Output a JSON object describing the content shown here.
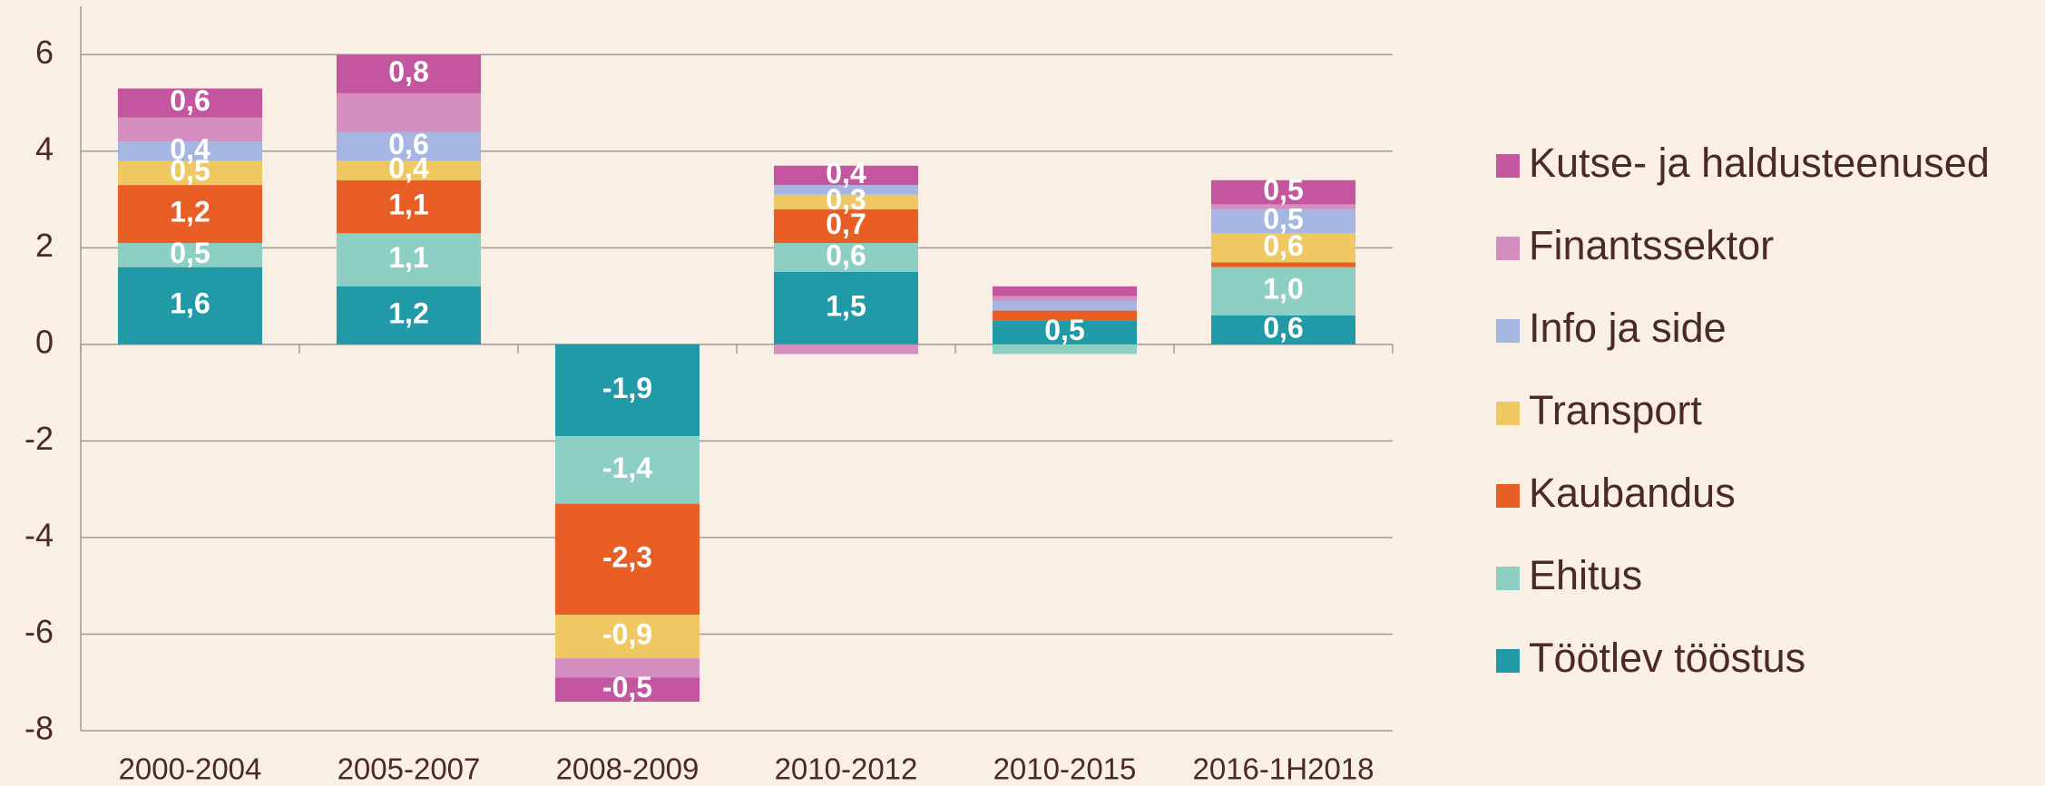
{
  "chart_data": {
    "type": "stacked_bar",
    "categories": [
      "2000-2004",
      "2005-2007",
      "2008-2009",
      "2010-2012",
      "2010-2015",
      "2016-1H2018"
    ],
    "ylim": [
      -8,
      7
    ],
    "yticks": [
      -8,
      -6,
      -4,
      -2,
      0,
      2,
      4,
      6
    ],
    "grid": true,
    "legend": "right",
    "series": [
      {
        "name": "Töötlev tööstus",
        "color": "#1f9aa6",
        "values": [
          1.6,
          1.2,
          -1.9,
          1.5,
          0.5,
          0.6
        ],
        "value_labels": [
          "1,6",
          "1,2",
          "-1,9",
          "1,5",
          "0,5",
          "0,6"
        ]
      },
      {
        "name": "Ehitus",
        "color": "#8ecfc3",
        "values": [
          0.5,
          1.1,
          -1.4,
          0.6,
          -0.2,
          1.0
        ],
        "value_labels": [
          "0,5",
          "1,1",
          "-1,4",
          "0,6",
          null,
          "1,0"
        ]
      },
      {
        "name": "Kaubandus",
        "color": "#e95e24",
        "values": [
          1.2,
          1.1,
          -2.3,
          0.7,
          0.2,
          0.1
        ],
        "value_labels": [
          "1,2",
          "1,1",
          "-2,3",
          "0,7",
          null,
          null
        ]
      },
      {
        "name": "Transport",
        "color": "#f0c862",
        "values": [
          0.5,
          0.4,
          -0.9,
          0.3,
          0.0,
          0.6
        ],
        "value_labels": [
          "0,5",
          "0,4",
          "-0,9",
          "0,3",
          null,
          "0,6"
        ]
      },
      {
        "name": "Info ja side",
        "color": "#a5b6e2",
        "values": [
          0.4,
          0.6,
          0.0,
          0.2,
          0.2,
          0.5
        ],
        "value_labels": [
          "0,4",
          "0,6",
          null,
          null,
          null,
          "0,5"
        ]
      },
      {
        "name": "Finantssektor",
        "color": "#d48fc0",
        "values": [
          0.5,
          0.8,
          -0.4,
          -0.2,
          0.1,
          0.1
        ],
        "value_labels": [
          null,
          null,
          null,
          null,
          null,
          null
        ]
      },
      {
        "name": "Kutse- ja haldusteenused",
        "color": "#c4559f",
        "values": [
          0.6,
          0.8,
          -0.5,
          0.4,
          0.2,
          0.5
        ],
        "value_labels": [
          "0,6",
          "0,8",
          "-0,5",
          "0,4",
          null,
          "0,5"
        ]
      }
    ]
  }
}
